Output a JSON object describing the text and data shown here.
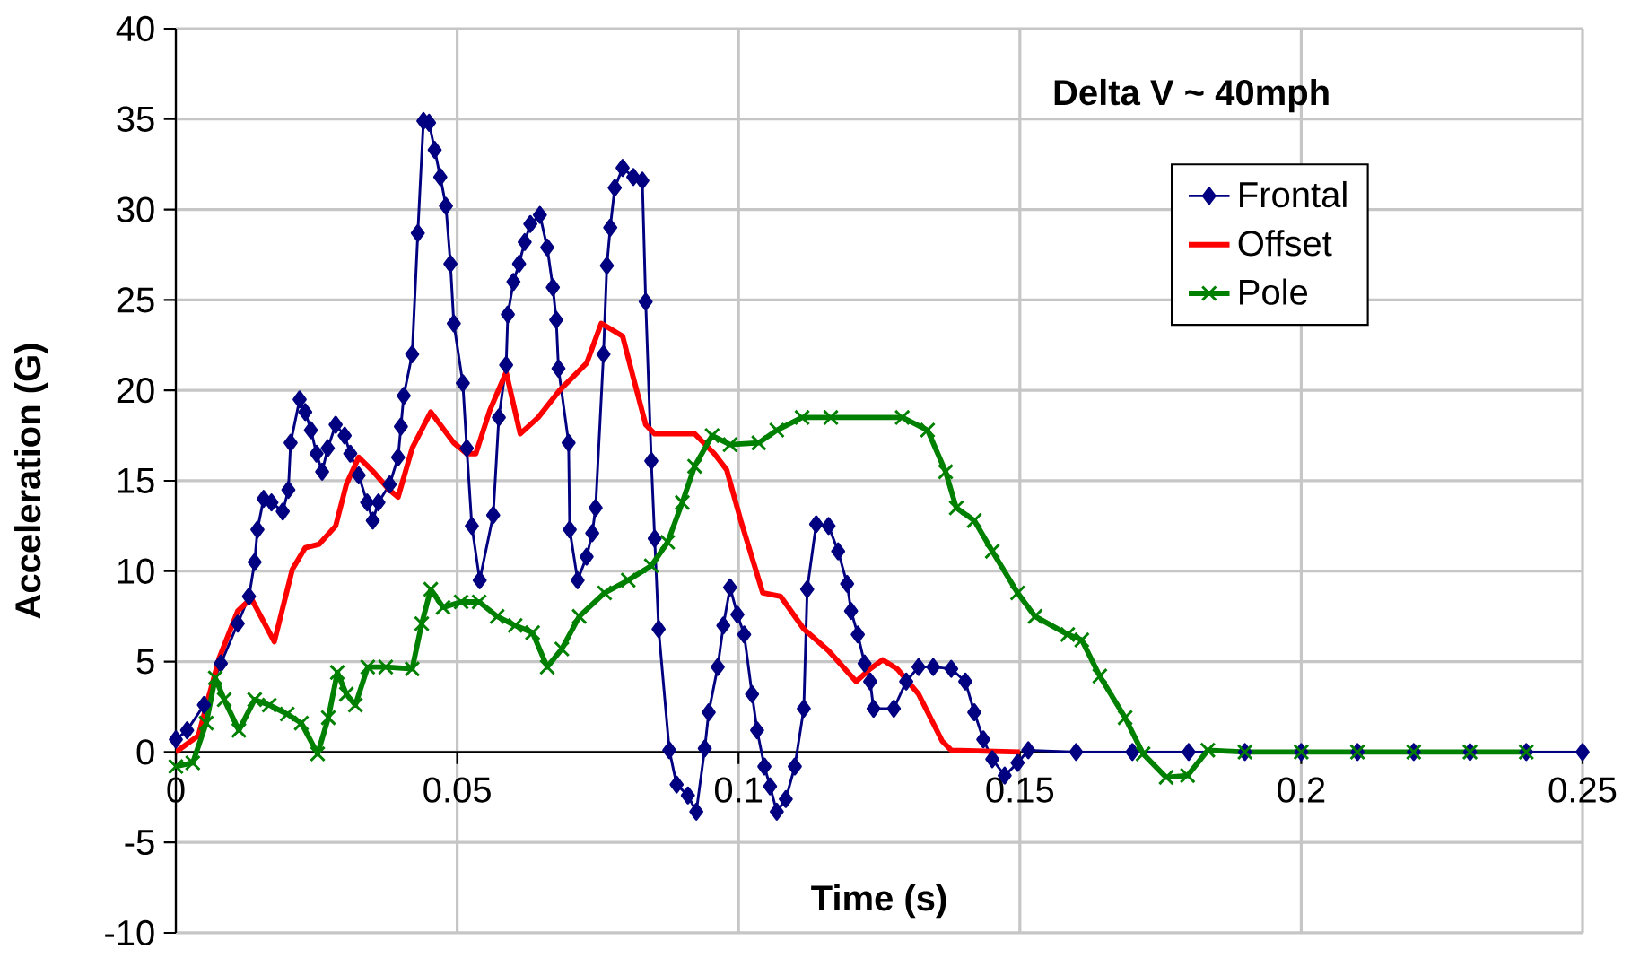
{
  "chart_data": {
    "type": "line",
    "title": "Delta V ~ 40mph",
    "xlabel": "Time (s)",
    "ylabel": "Acceleration (G)",
    "xlim": [
      0,
      0.25
    ],
    "xticks": [
      0,
      0.05,
      0.1,
      0.15,
      0.2,
      0.25
    ],
    "ylim": [
      -10,
      40
    ],
    "yticks": [
      -10,
      -5,
      0,
      5,
      10,
      15,
      20,
      25,
      30,
      35,
      40
    ],
    "grid": true,
    "legend": "top right",
    "series": [
      {
        "name": "Frontal",
        "color": "#000080",
        "marker": "diamond",
        "x": [
          0,
          0.002,
          0.005,
          0.008,
          0.011,
          0.013,
          0.014,
          0.0145,
          0.0156,
          0.017,
          0.019,
          0.02,
          0.0204,
          0.022,
          0.023,
          0.024,
          0.025,
          0.026,
          0.027,
          0.0284,
          0.03,
          0.031,
          0.0325,
          0.034,
          0.035,
          0.036,
          0.038,
          0.0395,
          0.04,
          0.0405,
          0.042,
          0.043,
          0.044,
          0.045,
          0.046,
          0.047,
          0.048,
          0.0488,
          0.0494,
          0.051,
          0.0517,
          0.0526,
          0.054,
          0.0564,
          0.0574,
          0.0587,
          0.059,
          0.06,
          0.061,
          0.062,
          0.063,
          0.0647,
          0.066,
          0.067,
          0.0676,
          0.068,
          0.0698,
          0.07,
          0.0714,
          0.073,
          0.074,
          0.0746,
          0.076,
          0.0766,
          0.0772,
          0.078,
          0.0794,
          0.0813,
          0.0829,
          0.0835,
          0.0845,
          0.0851,
          0.0858,
          0.0877,
          0.089,
          0.091,
          0.0925,
          0.094,
          0.0947,
          0.0963,
          0.0973,
          0.0985,
          0.0998,
          0.101,
          0.1024,
          0.1033,
          0.1046,
          0.1056,
          0.1068,
          0.1084,
          0.11,
          0.1116,
          0.1122,
          0.1138,
          0.116,
          0.1177,
          0.1193,
          0.12,
          0.1212,
          0.1224,
          0.1234,
          0.124,
          0.1276,
          0.1298,
          0.132,
          0.1346,
          0.1378,
          0.1403,
          0.1419,
          0.1435,
          0.1451,
          0.1473,
          0.1496,
          0.1515,
          0.16,
          0.17,
          0.18,
          0.19,
          0.2,
          0.21,
          0.22,
          0.23,
          0.24,
          0.25
        ],
        "values": [
          0.7,
          1.2,
          2.6,
          4.9,
          7.1,
          8.6,
          10.5,
          12.3,
          14.0,
          13.8,
          13.3,
          14.5,
          17.1,
          19.5,
          18.8,
          17.8,
          16.5,
          15.5,
          16.8,
          18.1,
          17.5,
          16.5,
          15.3,
          13.8,
          12.8,
          13.8,
          14.8,
          16.3,
          18.0,
          19.7,
          22.0,
          28.7,
          34.9,
          34.8,
          33.3,
          31.8,
          30.2,
          27.0,
          23.7,
          20.4,
          16.8,
          12.5,
          9.5,
          13.1,
          18.5,
          21.4,
          24.2,
          26.0,
          27.0,
          28.2,
          29.2,
          29.7,
          27.9,
          25.7,
          23.9,
          21.2,
          17.1,
          12.3,
          9.5,
          10.8,
          12.1,
          13.5,
          22.0,
          26.9,
          29.0,
          31.2,
          32.3,
          31.8,
          31.6,
          24.9,
          16.1,
          11.8,
          6.8,
          0.1,
          -1.8,
          -2.4,
          -3.3,
          0.2,
          2.2,
          4.7,
          7.0,
          9.1,
          7.6,
          6.5,
          3.2,
          1.2,
          -0.8,
          -1.9,
          -3.3,
          -2.6,
          -0.8,
          2.4,
          9.0,
          12.6,
          12.5,
          11.1,
          9.3,
          7.8,
          6.5,
          4.9,
          3.9,
          2.4,
          2.4,
          3.9,
          4.7,
          4.7,
          4.6,
          3.9,
          2.2,
          0.7,
          -0.4,
          -1.3,
          -0.6,
          0.1,
          0,
          0,
          0,
          0,
          0,
          0,
          0,
          0,
          0,
          0
        ]
      },
      {
        "name": "Offset",
        "color": "#ff0000",
        "marker": "none",
        "x": [
          0,
          0.004,
          0.0077,
          0.011,
          0.0134,
          0.0175,
          0.0207,
          0.023,
          0.0255,
          0.0284,
          0.0303,
          0.0325,
          0.0351,
          0.0379,
          0.0395,
          0.042,
          0.0453,
          0.0494,
          0.0517,
          0.0533,
          0.0558,
          0.0587,
          0.0612,
          0.0644,
          0.0682,
          0.073,
          0.0756,
          0.0794,
          0.0813,
          0.0835,
          0.0851,
          0.0922,
          0.0957,
          0.0979,
          0.1004,
          0.1043,
          0.1075,
          0.1116,
          0.116,
          0.1209,
          0.1234,
          0.1256,
          0.1282,
          0.132,
          0.1362,
          0.1378,
          0.15
        ],
        "values": [
          0,
          0.9,
          5.2,
          7.8,
          8.5,
          6.1,
          10.1,
          11.3,
          11.5,
          12.5,
          14.8,
          16.3,
          15.5,
          14.5,
          14.1,
          16.8,
          18.8,
          17.1,
          16.5,
          16.5,
          18.9,
          21.0,
          17.6,
          18.5,
          20.0,
          21.5,
          23.7,
          23.0,
          20.7,
          18.1,
          17.6,
          17.6,
          16.5,
          15.6,
          12.8,
          8.8,
          8.6,
          6.8,
          5.6,
          3.9,
          4.6,
          5.1,
          4.6,
          3.2,
          0.6,
          0.1,
          0
        ]
      },
      {
        "name": "Pole",
        "color": "#008000",
        "marker": "cross",
        "x": [
          0,
          0.003,
          0.0054,
          0.007,
          0.0086,
          0.0112,
          0.014,
          0.0166,
          0.0198,
          0.0223,
          0.0252,
          0.0271,
          0.0287,
          0.0303,
          0.0319,
          0.0341,
          0.0373,
          0.042,
          0.0437,
          0.0453,
          0.0475,
          0.0507,
          0.0539,
          0.0571,
          0.0603,
          0.0634,
          0.066,
          0.0686,
          0.0717,
          0.0762,
          0.0804,
          0.0845,
          0.0874,
          0.09,
          0.0922,
          0.0953,
          0.0985,
          0.1036,
          0.1068,
          0.1113,
          0.1164,
          0.1291,
          0.1336,
          0.1368,
          0.1387,
          0.1419,
          0.1451,
          0.1496,
          0.1527,
          0.1585,
          0.161,
          0.1642,
          0.1687,
          0.1719,
          0.176,
          0.1798,
          0.1834,
          0.19,
          0.2,
          0.21,
          0.22,
          0.23,
          0.24
        ],
        "values": [
          -0.8,
          -0.6,
          1.6,
          4.1,
          2.9,
          1.2,
          2.9,
          2.6,
          2.1,
          1.6,
          -0.1,
          1.9,
          4.4,
          3.2,
          2.6,
          4.7,
          4.7,
          4.6,
          7.1,
          9.0,
          8.0,
          8.3,
          8.3,
          7.5,
          7.0,
          6.6,
          4.7,
          5.7,
          7.5,
          8.8,
          9.5,
          10.3,
          11.6,
          13.8,
          15.8,
          17.5,
          17.0,
          17.1,
          17.8,
          18.5,
          18.5,
          18.5,
          17.8,
          15.5,
          13.5,
          12.8,
          11.1,
          8.8,
          7.5,
          6.5,
          6.2,
          4.2,
          1.9,
          -0.1,
          -1.4,
          -1.3,
          0.1,
          0,
          0,
          0,
          0,
          0,
          0
        ]
      }
    ]
  }
}
